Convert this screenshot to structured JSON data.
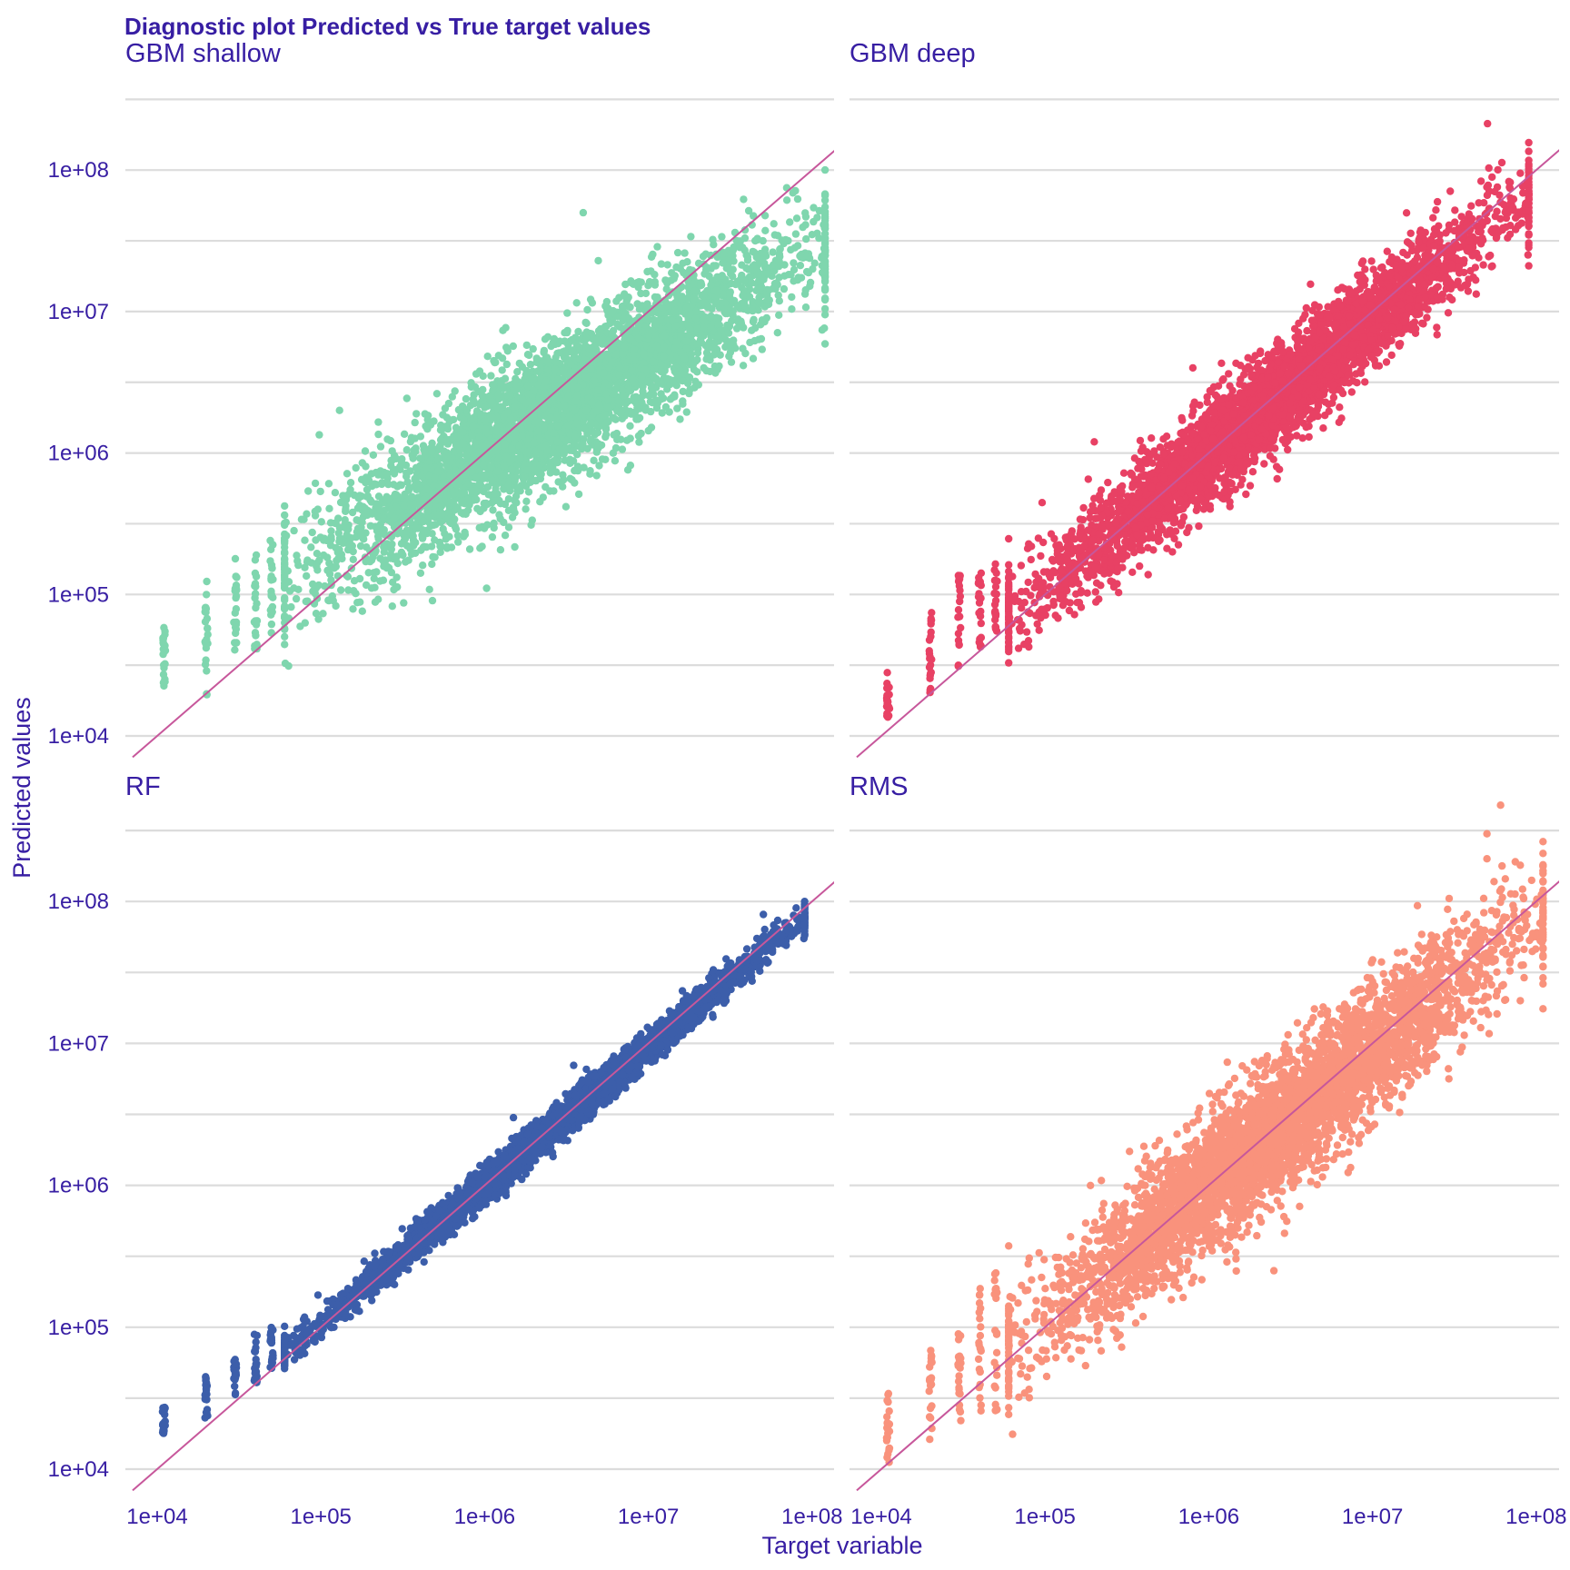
{
  "chart_data": {
    "type": "scatter",
    "title": "Diagnostic plot Predicted vs True target values",
    "xlabel": "Target variable",
    "ylabel": "Predicted values",
    "x_scale": "log10",
    "y_scale": "log10",
    "xlim": [
      8000,
      150000000
    ],
    "ylim": [
      7000,
      350000000
    ],
    "x_ticks": [
      {
        "value": 10000,
        "label": "1e+04"
      },
      {
        "value": 100000,
        "label": "1e+05"
      },
      {
        "value": 1000000,
        "label": "1e+06"
      },
      {
        "value": 10000000,
        "label": "1e+07"
      },
      {
        "value": 100000000,
        "label": "1e+08"
      }
    ],
    "y_ticks": [
      {
        "value": 10000,
        "label": "1e+04"
      },
      {
        "value": 100000,
        "label": "1e+05"
      },
      {
        "value": 1000000,
        "label": "1e+06"
      },
      {
        "value": 10000000,
        "label": "1e+07"
      },
      {
        "value": 100000000,
        "label": "1e+08"
      }
    ],
    "reference_line": "y = x",
    "grid": "horizontal major and minor",
    "series": [
      {
        "name": "GBM shallow",
        "color": "#7fd6ae",
        "spread": 0.24,
        "shrink": 0.28,
        "columns": [
          {
            "x": 11000,
            "y": [
              20000,
              60000
            ]
          },
          {
            "x": 20000,
            "y": [
              19000,
              150000
            ]
          },
          {
            "x": 30000,
            "y": [
              40000,
              180000
            ]
          },
          {
            "x": 40000,
            "y": [
              35000,
              200000
            ]
          },
          {
            "x": 50000,
            "y": [
              50000,
              250000
            ]
          }
        ],
        "x_range": [
          60000,
          120000000
        ],
        "outliers": [
          [
            130000,
            2000000
          ],
          [
            4000000,
            50000000
          ],
          [
            3000000,
            700000
          ],
          [
            5000000,
            2200000
          ],
          [
            70000000,
            75000000
          ],
          [
            100000000,
            35000000
          ]
        ]
      },
      {
        "name": "GBM deep",
        "color": "#e84164",
        "spread": 0.17,
        "shrink": 0.06,
        "columns": [
          {
            "x": 11000,
            "y": [
              13000,
              30000
            ]
          },
          {
            "x": 20000,
            "y": [
              20000,
              80000
            ]
          },
          {
            "x": 30000,
            "y": [
              30000,
              150000
            ]
          },
          {
            "x": 40000,
            "y": [
              40000,
              150000
            ]
          },
          {
            "x": 50000,
            "y": [
              55000,
              180000
            ]
          }
        ],
        "x_range": [
          60000,
          90000000
        ],
        "outliers": [
          [
            200000,
            1200000
          ],
          [
            800000,
            4000000
          ],
          [
            600000,
            200000
          ],
          [
            5000000,
            1500000
          ],
          [
            80000000,
            95000000
          ]
        ]
      },
      {
        "name": "RF",
        "color": "#3c5eaa",
        "spread": 0.06,
        "shrink": 0.03,
        "columns": [
          {
            "x": 11000,
            "y": [
              17000,
              28000
            ]
          },
          {
            "x": 20000,
            "y": [
              23000,
              45000
            ]
          },
          {
            "x": 30000,
            "y": [
              33000,
              60000
            ]
          },
          {
            "x": 40000,
            "y": [
              40000,
              95000
            ]
          },
          {
            "x": 50000,
            "y": [
              50000,
              100000
            ]
          }
        ],
        "x_range": [
          60000,
          90000000
        ],
        "outliers": [
          [
            3500000,
            7000000
          ],
          [
            1500000,
            3000000
          ],
          [
            80000000,
            90000000
          ]
        ]
      },
      {
        "name": "RMS",
        "color": "#f9927c",
        "spread": 0.23,
        "shrink": 0.05,
        "columns": [
          {
            "x": 11000,
            "y": [
              11000,
              35000
            ]
          },
          {
            "x": 20000,
            "y": [
              15000,
              80000
            ]
          },
          {
            "x": 30000,
            "y": [
              20000,
              100000
            ]
          },
          {
            "x": 40000,
            "y": [
              25000,
              200000
            ]
          },
          {
            "x": 50000,
            "y": [
              25000,
              250000
            ]
          }
        ],
        "x_range": [
          60000,
          110000000
        ],
        "outliers": [
          [
            50000000,
            300000000
          ],
          [
            80000000,
            180000000
          ],
          [
            50000000,
            200000000
          ],
          [
            2500000,
            250000
          ],
          [
            1000000,
            500000
          ],
          [
            100000000,
            60000000
          ],
          [
            80000000,
            20000000
          ]
        ]
      }
    ]
  }
}
